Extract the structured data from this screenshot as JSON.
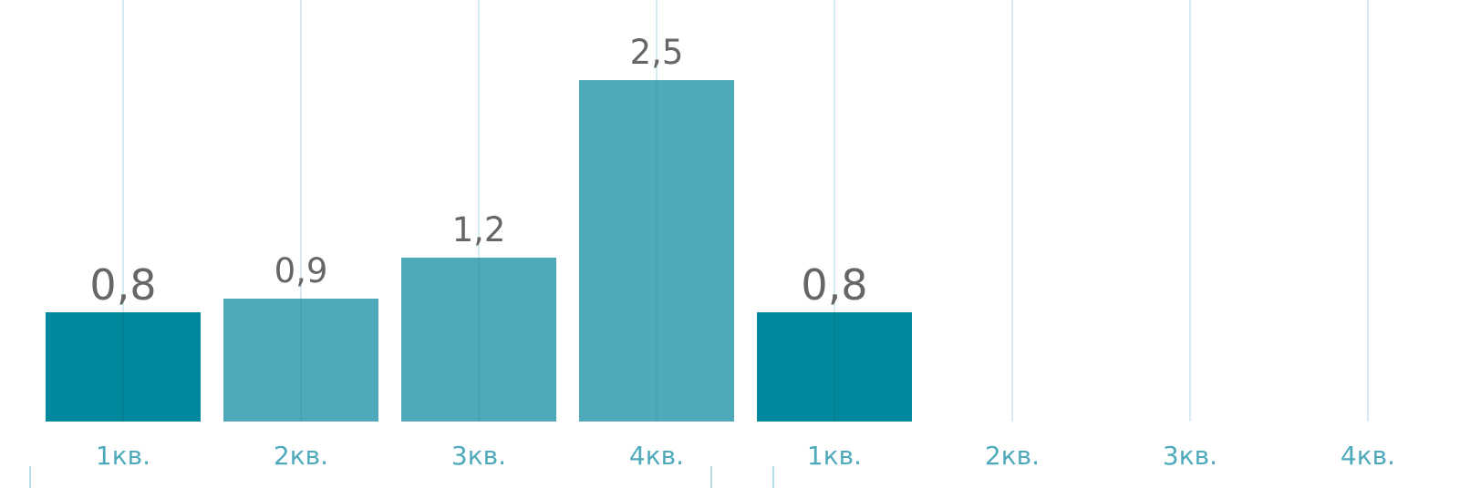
{
  "chart_data": {
    "type": "bar",
    "categories": [
      "1кв.",
      "2кв.",
      "3кв.",
      "4кв.",
      "1кв.",
      "2кв.",
      "3кв.",
      "4кв."
    ],
    "values": [
      0.8,
      0.9,
      1.2,
      2.5,
      0.8,
      null,
      null,
      null
    ],
    "value_labels": [
      "0,8",
      "0,9",
      "1,2",
      "2,5",
      "0,8",
      "",
      "",
      ""
    ],
    "emphasized": [
      true,
      false,
      false,
      false,
      true,
      false,
      false,
      false
    ],
    "ylim": [
      0,
      3.0
    ],
    "title": "",
    "xlabel": "",
    "ylabel": "",
    "grid": "vertical",
    "legend": "none"
  },
  "colors": {
    "bar": "#4eaabb",
    "bar_emphasis": "#00889c",
    "grid": "#c9e6ef",
    "tick_label": "#4eaabb",
    "value_label": "#666666",
    "axis_tick": "#9fd2df"
  }
}
